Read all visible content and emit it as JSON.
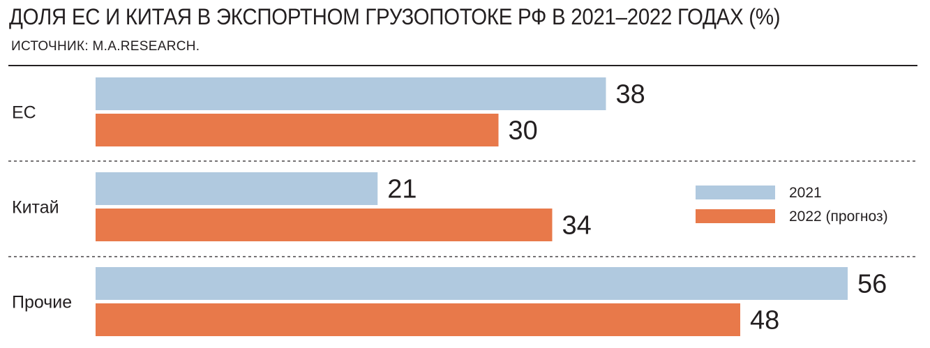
{
  "header": {
    "title": "ДОЛЯ ЕС И КИТАЯ В ЭКСПОРТНОМ ГРУЗОПОТОКЕ РФ В 2021–2022 ГОДАХ (%)",
    "source": "ИСТОЧНИК: M.A.RESEARCH."
  },
  "chart_data": {
    "type": "bar",
    "orientation": "horizontal",
    "title": "ДОЛЯ ЕС И КИТАЯ В ЭКСПОРТНОМ ГРУЗОПОТОКЕ РФ В 2021–2022 ГОДАХ (%)",
    "categories": [
      "ЕС",
      "Китай",
      "Прочие"
    ],
    "series": [
      {
        "name": "2021",
        "values": [
          38,
          21,
          56
        ],
        "color": "#b0c9df"
      },
      {
        "name": "2022 (прогноз)",
        "values": [
          30,
          34,
          48
        ],
        "color": "#e8794a"
      }
    ],
    "xlim": [
      0,
      56
    ],
    "data_labels": true,
    "grid": false,
    "legend": "right"
  }
}
